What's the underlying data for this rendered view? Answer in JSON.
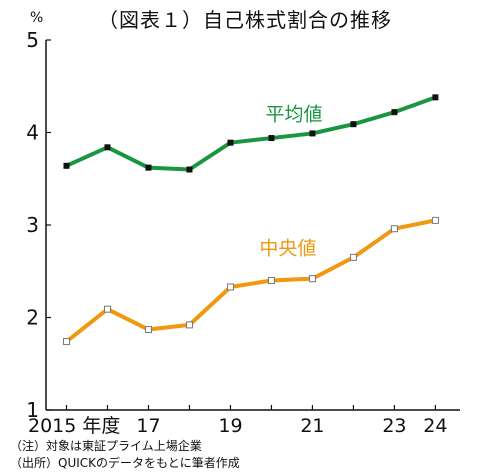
{
  "title": "（図表１）自己株式割合の推移",
  "unit": "%",
  "notes": {
    "note1": "（注）対象は東証プライム上場企業",
    "note2": "（出所）QUICKのデータをもとに筆者作成"
  },
  "colors": {
    "average": "#1a9641",
    "median": "#f0980f",
    "axis": "#111111"
  },
  "chart_data": {
    "type": "line",
    "title": "（図表１）自己株式割合の推移",
    "ylabel": "%",
    "xlabel": "",
    "ylim": [
      1,
      5
    ],
    "yticks": [
      1,
      2,
      3,
      4,
      5
    ],
    "x": [
      2015,
      2016,
      2017,
      2018,
      2019,
      2020,
      2021,
      2022,
      2023,
      2024
    ],
    "xticks": [
      {
        "x": 2015,
        "label": "2015 年度"
      },
      {
        "x": 2017,
        "label": "17"
      },
      {
        "x": 2019,
        "label": "19"
      },
      {
        "x": 2021,
        "label": "21"
      },
      {
        "x": 2023,
        "label": "23"
      },
      {
        "x": 2024,
        "label": "24"
      }
    ],
    "grid": false,
    "series": [
      {
        "name": "平均値",
        "color": "#1a9641",
        "marker": "filled-square",
        "values": [
          3.64,
          3.84,
          3.62,
          3.6,
          3.89,
          3.94,
          3.99,
          4.09,
          4.22,
          4.38
        ]
      },
      {
        "name": "中央値",
        "color": "#f0980f",
        "marker": "open-square",
        "values": [
          1.74,
          2.09,
          1.87,
          1.92,
          2.33,
          2.4,
          2.42,
          2.65,
          2.96,
          3.05
        ]
      }
    ]
  }
}
